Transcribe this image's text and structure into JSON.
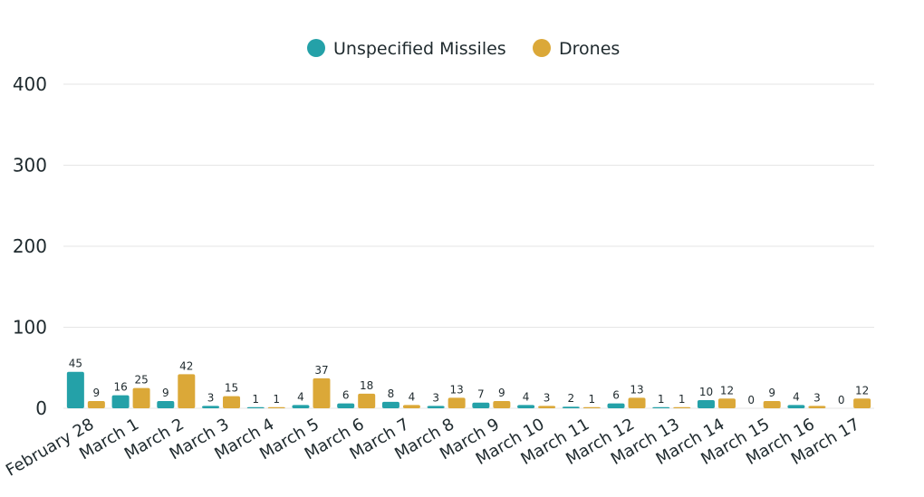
{
  "colors": {
    "missiles": "#24a1a8",
    "drones": "#dba838"
  },
  "chart_data": {
    "type": "bar",
    "categories": [
      "February 28",
      "March 1",
      "March 2",
      "March 3",
      "March 4",
      "March 5",
      "March 6",
      "March 7",
      "March 8",
      "March 9",
      "March 10",
      "March 11",
      "March 12",
      "March 13",
      "March 14",
      "March 15",
      "March 16",
      "March 17"
    ],
    "series": [
      {
        "name": "Unspecified Missiles",
        "values": [
          45,
          16,
          9,
          3,
          1,
          4,
          6,
          8,
          3,
          7,
          4,
          2,
          6,
          1,
          10,
          0,
          4,
          0
        ]
      },
      {
        "name": "Drones",
        "values": [
          9,
          25,
          42,
          15,
          1,
          37,
          18,
          4,
          13,
          9,
          3,
          1,
          13,
          1,
          12,
          9,
          3,
          12
        ]
      }
    ],
    "yticks": [
      "0",
      "100",
      "200",
      "300",
      "400"
    ],
    "ylim": [
      0,
      400
    ],
    "legend_position": "top-center",
    "grid": true
  }
}
